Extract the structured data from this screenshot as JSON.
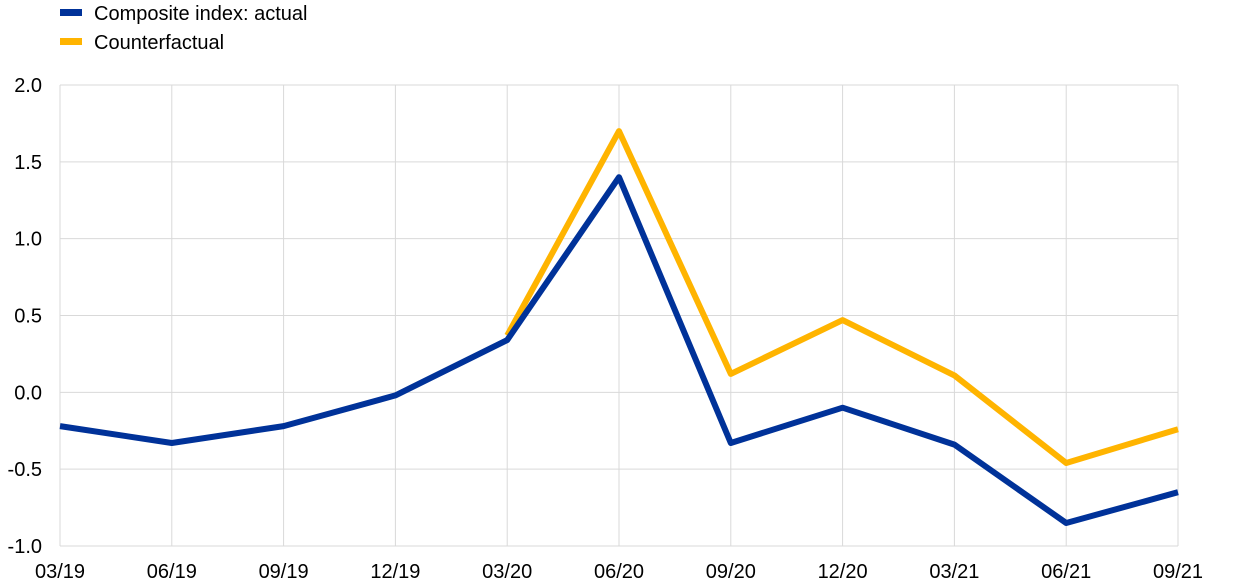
{
  "chart_data": {
    "type": "line",
    "title": "",
    "xlabel": "",
    "ylabel": "",
    "categories": [
      "03/19",
      "06/19",
      "09/19",
      "12/19",
      "03/20",
      "06/20",
      "09/20",
      "12/20",
      "03/21",
      "06/21",
      "09/21"
    ],
    "ylim": [
      -1.0,
      2.0
    ],
    "yticks": [
      "2.0",
      "1.5",
      "1.0",
      "0.5",
      "0.0",
      "-0.5",
      "-1.0"
    ],
    "grid": true,
    "legend_position": "top-left",
    "series": [
      {
        "name": "Composite index: actual",
        "color": "#003299",
        "values": [
          -0.22,
          -0.33,
          -0.22,
          -0.02,
          0.34,
          1.4,
          -0.33,
          -0.1,
          -0.34,
          -0.85,
          -0.65
        ]
      },
      {
        "name": "Counterfactual",
        "color": "#FFB400",
        "values": [
          null,
          null,
          null,
          null,
          0.37,
          1.7,
          0.12,
          0.47,
          0.11,
          -0.46,
          -0.24
        ]
      }
    ]
  }
}
